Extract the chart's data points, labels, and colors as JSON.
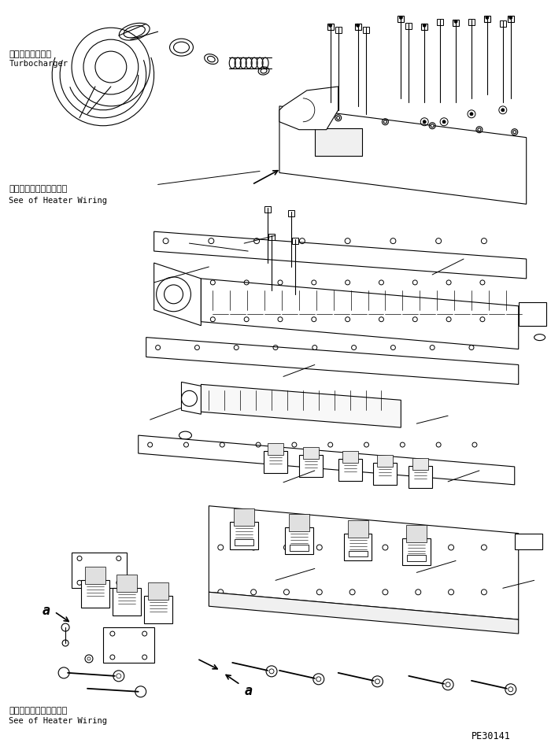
{
  "bg_color": "#ffffff",
  "line_color": "#000000",
  "title_text": "PE30141",
  "turbocharger_label_jp": "ターボチャージャ",
  "turbocharger_label_en": "Turbocharger",
  "heater_wiring_jp": "ヒータワイヤリング参照",
  "heater_wiring_en": "See of Heater Wiring",
  "label_a": "a",
  "figsize": [
    7.0,
    9.45
  ],
  "dpi": 100
}
